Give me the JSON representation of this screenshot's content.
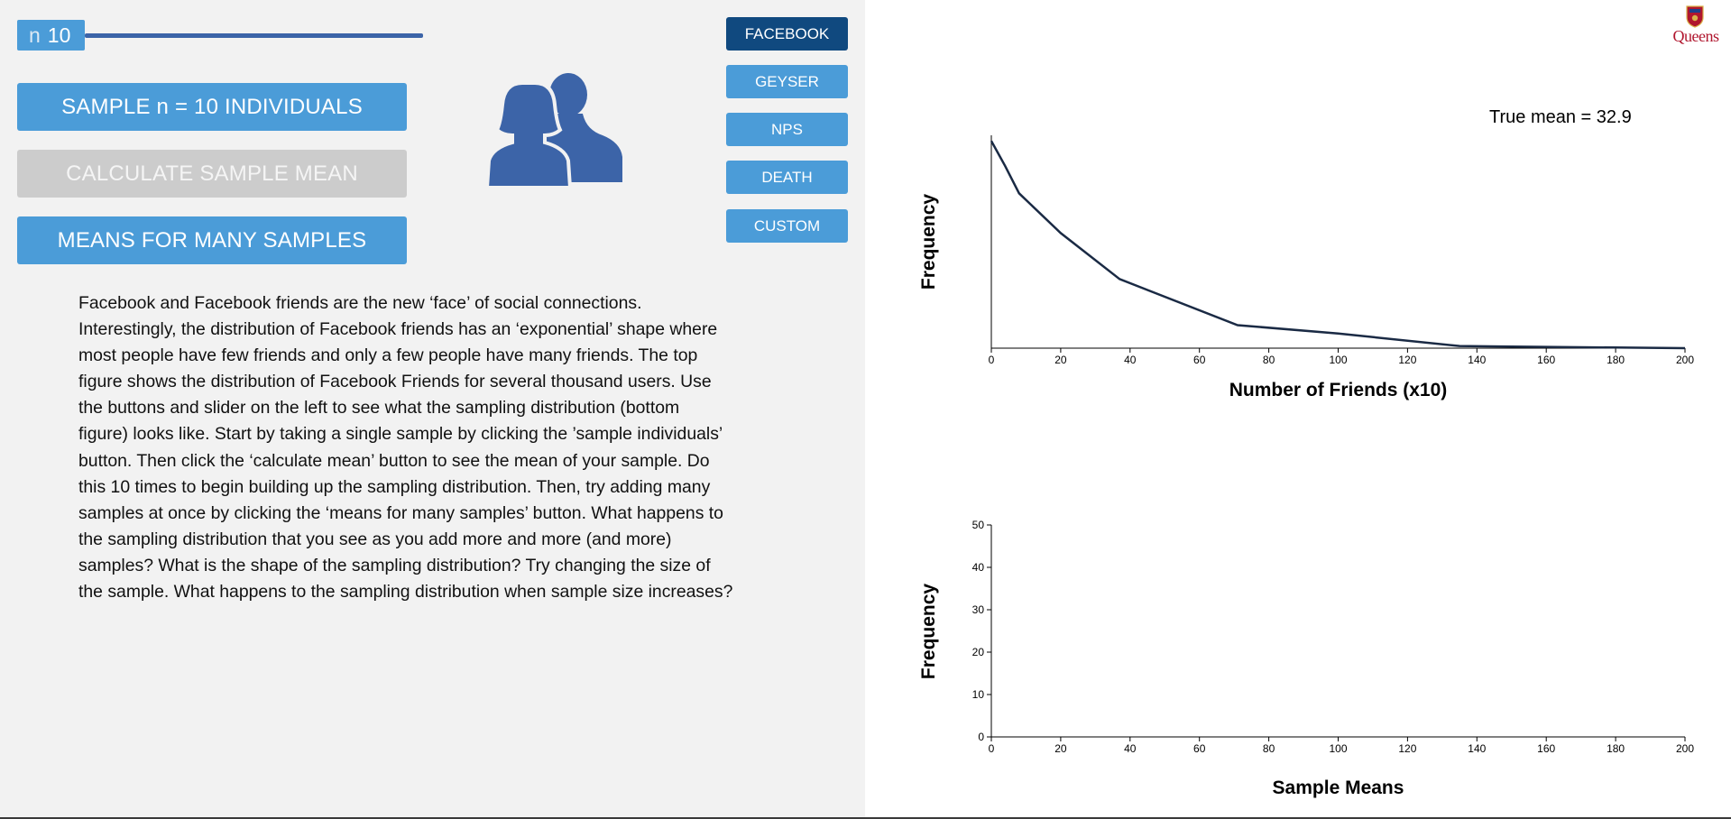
{
  "slider": {
    "label": "n",
    "value": "10"
  },
  "buttons": {
    "sample": "SAMPLE n = 10 INDIVIDUALS",
    "calculate": "CALCULATE SAMPLE MEAN",
    "many": "MEANS FOR MANY SAMPLES"
  },
  "datasets": [
    "FACEBOOK",
    "GEYSER",
    "NPS",
    "DEATH",
    "CUSTOM"
  ],
  "active_dataset": "FACEBOOK",
  "description": "Facebook and Facebook friends are the new ‘face’ of social connections.\nInterestingly, the distribution of Facebook friends has an ‘exponential’ shape where\nmost people have few friends and only a few people have many friends. The top\nfigure shows the distribution of Facebook Friends for several thousand users. Use\nthe buttons and slider on the left to see what the sampling distribution (bottom\nfigure) looks like. Start by taking a single sample by clicking the ’sample individuals’\nbutton. Then click the ‘calculate mean’ button to see the mean of your sample. Do\nthis 10 times to begin building up the sampling distribution. Then, try adding many\nsamples at once by clicking the ‘means for many samples’ button. What happens to\nthe sampling distribution that you see as you add more and more (and more)\nsamples? What is the shape of the sampling distribution? Try changing the size of\nthe sample. What happens to the sampling distribution when sample size increases?",
  "logo": {
    "text": "Queens",
    "color": "#b0162e"
  },
  "true_mean": "True mean = 32.9",
  "colors": {
    "accent": "#4b9cd8",
    "active": "#10497f",
    "disabled": "#cccccc",
    "icon": "#3c64a8",
    "line": "#1a2a44"
  },
  "icons": {
    "people": "two-people-icon",
    "crest": "queens-crest-icon"
  },
  "chart_data": [
    {
      "type": "line",
      "title": "",
      "xlabel": "Number of Friends (x10)",
      "ylabel": "Frequency",
      "xlim": [
        0,
        200
      ],
      "x_ticks": [
        0,
        20,
        40,
        60,
        80,
        100,
        120,
        140,
        160,
        180,
        200
      ],
      "y_ticks_shown": false,
      "series": [
        {
          "x": [
            0,
            2,
            4,
            8,
            20,
            37,
            71,
            100,
            135,
            160,
            180,
            200
          ],
          "y": [
            0.99,
            0.93,
            0.87,
            0.74,
            0.55,
            0.33,
            0.11,
            0.07,
            0.01,
            0.006,
            0.003,
            0.0
          ]
        }
      ]
    },
    {
      "type": "bar",
      "title": "",
      "xlabel": "Sample Means",
      "ylabel": "Frequency",
      "xlim": [
        0,
        200
      ],
      "ylim": [
        0,
        50
      ],
      "x_ticks": [
        0,
        20,
        40,
        60,
        80,
        100,
        120,
        140,
        160,
        180,
        200
      ],
      "y_ticks": [
        0,
        10,
        20,
        30,
        40,
        50
      ],
      "values": []
    }
  ]
}
